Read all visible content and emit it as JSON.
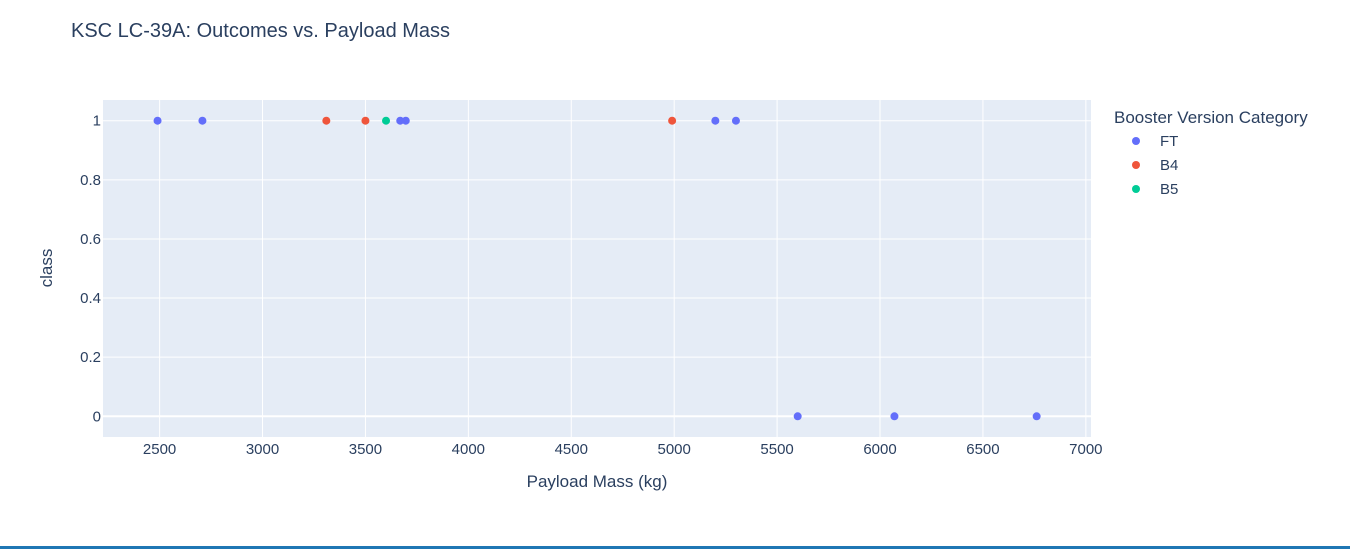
{
  "chart_data": {
    "type": "scatter",
    "title": "KSC LC-39A: Outcomes vs. Payload Mass",
    "xlabel": "Payload Mass (kg)",
    "ylabel": "class",
    "xlim": [
      2225,
      7025
    ],
    "ylim": [
      -0.07,
      1.07
    ],
    "x_ticks": [
      2500,
      3000,
      3500,
      4000,
      4500,
      5000,
      5500,
      6000,
      6500,
      7000
    ],
    "y_ticks": [
      0,
      0.2,
      0.4,
      0.6,
      0.8,
      1
    ],
    "grid": true,
    "legend": {
      "title": "Booster Version Category",
      "placement": "right"
    },
    "series": [
      {
        "name": "FT",
        "color": "#636efa",
        "points": [
          {
            "x": 2490,
            "y": 1
          },
          {
            "x": 2708,
            "y": 1
          },
          {
            "x": 3669,
            "y": 1
          },
          {
            "x": 3696,
            "y": 1
          },
          {
            "x": 5200,
            "y": 1
          },
          {
            "x": 5300,
            "y": 1
          },
          {
            "x": 5600,
            "y": 0
          },
          {
            "x": 6070,
            "y": 0
          },
          {
            "x": 6761,
            "y": 0
          }
        ]
      },
      {
        "name": "B4",
        "color": "#ef553b",
        "points": [
          {
            "x": 3310,
            "y": 1
          },
          {
            "x": 3500,
            "y": 1
          },
          {
            "x": 4990,
            "y": 1
          }
        ]
      },
      {
        "name": "B5",
        "color": "#00cc96",
        "points": [
          {
            "x": 3600,
            "y": 1
          }
        ]
      }
    ]
  }
}
